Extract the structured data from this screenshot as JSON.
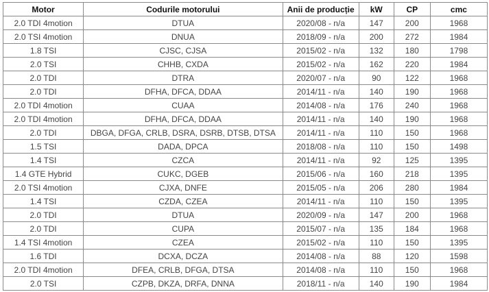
{
  "table": {
    "headers": [
      "Motor",
      "Codurile motorului",
      "Anii de producție",
      "kW",
      "CP",
      "cmc"
    ],
    "rows": [
      [
        "2.0 TDI 4motion",
        "DTUA",
        "2020/08 - n/a",
        "147",
        "200",
        "1968"
      ],
      [
        "2.0 TSI 4motion",
        "DNUA",
        "2018/09 - n/a",
        "200",
        "272",
        "1984"
      ],
      [
        "1.8 TSI",
        "CJSC, CJSA",
        "2015/02 - n/a",
        "132",
        "180",
        "1798"
      ],
      [
        "2.0 TSI",
        "CHHB, CXDA",
        "2015/02 - n/a",
        "162",
        "220",
        "1984"
      ],
      [
        "2.0 TDI",
        "DTRA",
        "2020/07 - n/a",
        "90",
        "122",
        "1968"
      ],
      [
        "2.0 TDI",
        "DFHA, DFCA, DDAA",
        "2014/11 - n/a",
        "140",
        "190",
        "1968"
      ],
      [
        "2.0 TDI 4motion",
        "CUAA",
        "2014/08 - n/a",
        "176",
        "240",
        "1968"
      ],
      [
        "2.0 TDI 4motion",
        "DFHA, DFCA, DDAA",
        "2014/11 - n/a",
        "140",
        "190",
        "1968"
      ],
      [
        "2.0 TDI",
        "DBGA, DFGA, CRLB, DSRA, DSRB, DTSB, DTSA",
        "2014/11 - n/a",
        "110",
        "150",
        "1968"
      ],
      [
        "1.5 TSI",
        "DADA, DPCA",
        "2018/08 - n/a",
        "110",
        "150",
        "1498"
      ],
      [
        "1.4 TSI",
        "CZCA",
        "2014/11 - n/a",
        "92",
        "125",
        "1395"
      ],
      [
        "1.4 GTE Hybrid",
        "CUKC, DGEB",
        "2015/06 - n/a",
        "160",
        "218",
        "1395"
      ],
      [
        "2.0 TSI 4motion",
        "CJXA, DNFE",
        "2015/05 - n/a",
        "206",
        "280",
        "1984"
      ],
      [
        "1.4 TSI",
        "CZDA, CZEA",
        "2014/11 - n/a",
        "110",
        "150",
        "1395"
      ],
      [
        "2.0 TDI",
        "DTUA",
        "2020/09 - n/a",
        "147",
        "200",
        "1968"
      ],
      [
        "2.0 TDI",
        "CUPA",
        "2015/07 - n/a",
        "135",
        "184",
        "1968"
      ],
      [
        "1.4 TSI 4motion",
        "CZEA",
        "2015/02 - n/a",
        "110",
        "150",
        "1395"
      ],
      [
        "1.6 TDI",
        "DCXA, DCZA",
        "2014/08 - n/a",
        "88",
        "120",
        "1598"
      ],
      [
        "2.0 TDI 4motion",
        "DFEA, CRLB, DFGA, DTSA",
        "2014/08 - n/a",
        "110",
        "150",
        "1968"
      ],
      [
        "2.0 TSI",
        "CZPB, DKZA, DRFA, DNNA",
        "2018/11 - n/a",
        "140",
        "190",
        "1984"
      ]
    ]
  }
}
